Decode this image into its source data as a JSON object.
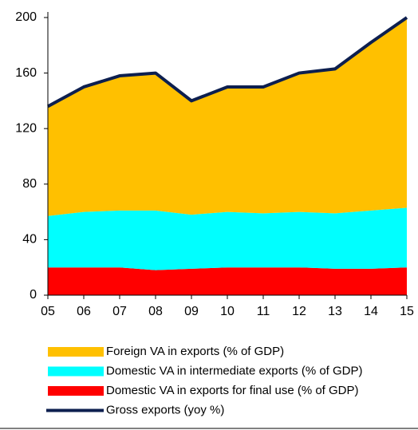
{
  "chart_data": {
    "type": "area",
    "categories": [
      "05",
      "06",
      "07",
      "08",
      "09",
      "10",
      "11",
      "12",
      "13",
      "14",
      "15"
    ],
    "series": [
      {
        "name": "Foreign VA in exports (% of GDP)",
        "color": "#FFC000",
        "values": [
          79,
          90,
          97,
          99,
          82,
          90,
          91,
          100,
          104,
          121,
          137
        ]
      },
      {
        "name": "Domestic VA in intermediate exports (% of GDP)",
        "color": "#00FFFF",
        "values": [
          37,
          40,
          41,
          43,
          39,
          40,
          39,
          40,
          40,
          42,
          43
        ]
      },
      {
        "name": "Domestic VA in exports for final use (% of GDP)",
        "color": "#FF0000",
        "values": [
          20,
          20,
          20,
          18,
          19,
          20,
          20,
          20,
          19,
          19,
          20
        ]
      },
      {
        "name": "Gross exports (yoy %)",
        "color": "#0D1F4F",
        "type": "line",
        "values": [
          136,
          150,
          158,
          160,
          140,
          150,
          150,
          160,
          163,
          182,
          200
        ]
      }
    ],
    "ylim": [
      0,
      204
    ],
    "yticks": [
      0,
      40,
      80,
      120,
      160,
      200
    ]
  }
}
